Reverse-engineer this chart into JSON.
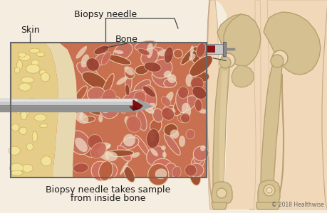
{
  "bg_color": "#f5ede0",
  "label_biopsy_needle": "Biopsy needle",
  "label_skin": "Skin",
  "label_bone": "Bone",
  "caption_line1": "Biopsy needle takes sample",
  "caption_line2": "from inside bone",
  "copyright": "© 2018 Healthwise",
  "skin_fat_color": "#e8d48a",
  "skin_fat_light": "#f5e8a0",
  "cortex_color": "#e8d4a8",
  "marrow_bg": "#c87050",
  "marrow_dark": "#a05030",
  "marrow_light": "#e8c0a0",
  "marrow_cream": "#f0e0c8",
  "needle_dark": "#787878",
  "needle_mid": "#a0a0a0",
  "needle_light": "#d0d0d0",
  "needle_red": "#8b1515",
  "skeleton_bone": "#d4c090",
  "skeleton_outline": "#b8a070",
  "skeleton_flesh": "#f0d8b8",
  "box_border": "#666666",
  "text_color": "#1a1a1a",
  "line_color": "#444444",
  "syringe_barrel": "#c8c8c8",
  "syringe_needle_color": "#909090"
}
